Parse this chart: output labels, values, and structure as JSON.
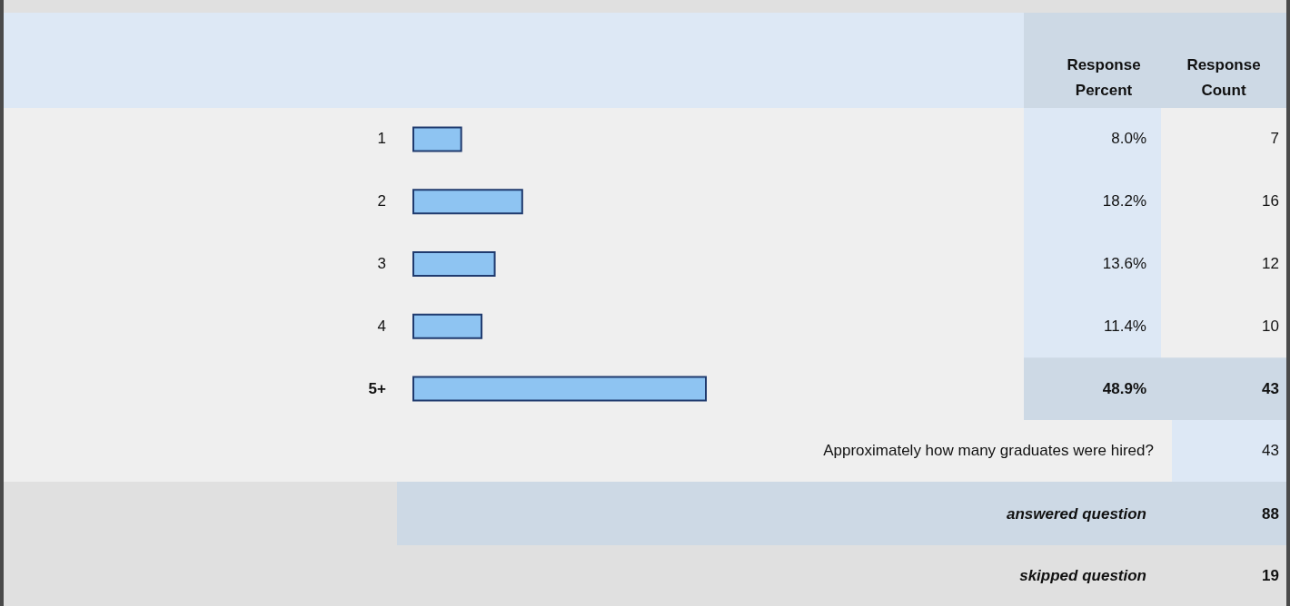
{
  "chart_data": {
    "type": "bar",
    "orientation": "horizontal",
    "categories": [
      "1",
      "2",
      "3",
      "4",
      "5+"
    ],
    "values": [
      8.0,
      18.2,
      13.6,
      11.4,
      48.9
    ],
    "value_labels": [
      "8.0%",
      "18.2%",
      "13.6%",
      "11.4%",
      "48.9%"
    ],
    "color": "#8ec4f2",
    "annotations": [
      "Response Percent",
      "Response Count",
      "7",
      "16",
      "12",
      "10",
      "43",
      "Approximately how many graduates were hired?",
      "43",
      "answered question",
      "88",
      "skipped question",
      "19"
    ]
  }
}
